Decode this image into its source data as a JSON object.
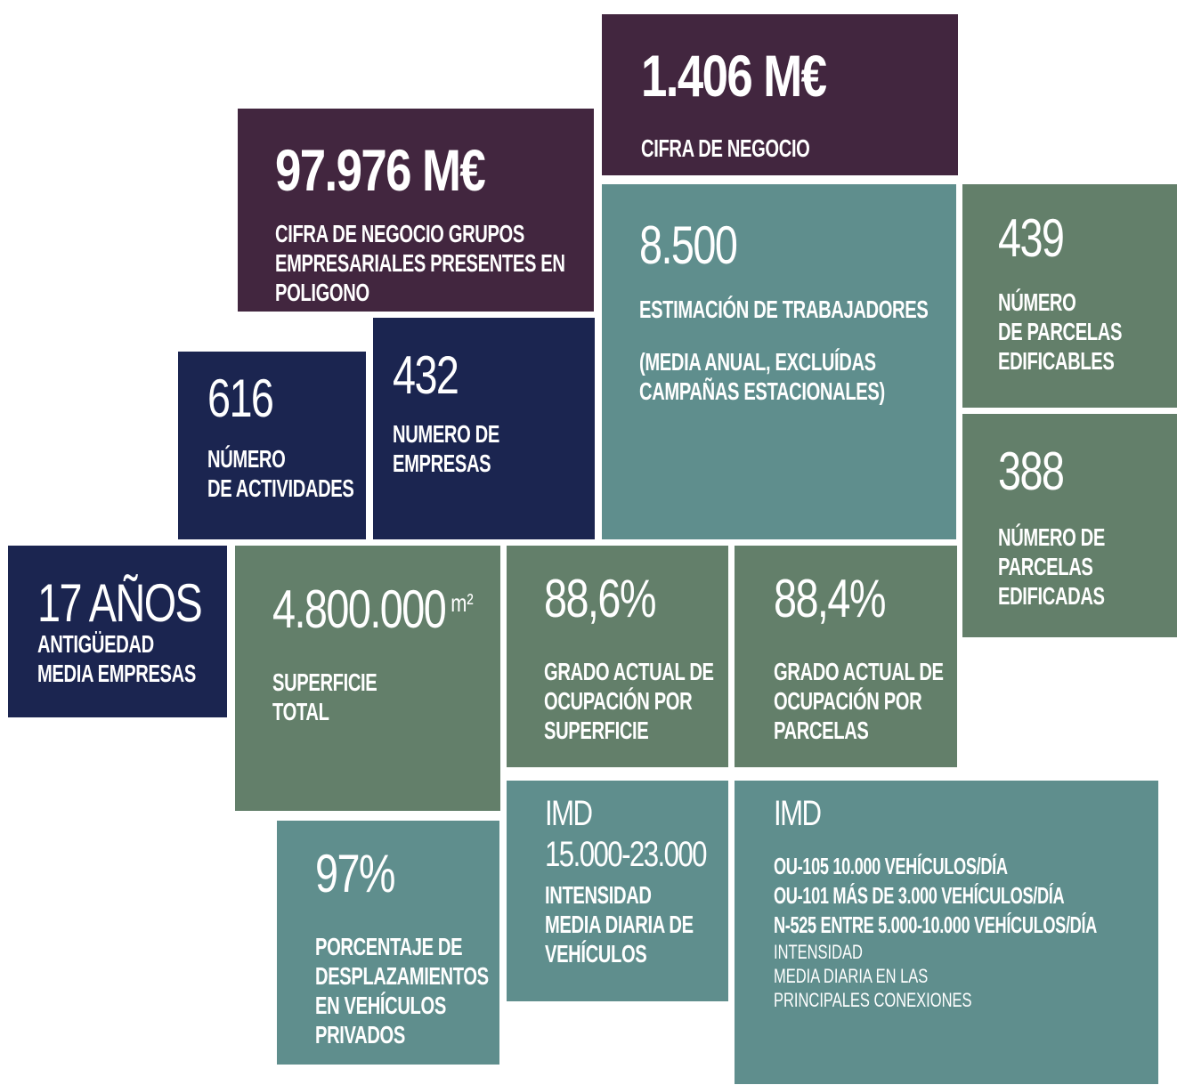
{
  "tiles": [
    {
      "value": [
        "1.406 M€"
      ],
      "label": [
        "CIFRA DE NEGOCIO"
      ]
    },
    {
      "value": [
        "97.976 M€"
      ],
      "label": [
        "CIFRA DE NEGOCIO GRUPOS",
        "EMPRESARIALES PRESENTES EN",
        "POLIGONO"
      ]
    },
    {
      "value": [
        "8.500"
      ],
      "label": [
        "ESTIMACIÓN DE TRABAJADORES"
      ],
      "note": [
        "(MEDIA ANUAL, EXCLUÍDAS",
        "CAMPAÑAS ESTACIONALES)"
      ]
    },
    {
      "value": [
        "439"
      ],
      "label": [
        "NÚMERO",
        "DE PARCELAS",
        "EDIFICABLES"
      ]
    },
    {
      "value": [
        "388"
      ],
      "label": [
        "NÚMERO DE",
        "PARCELAS",
        "EDIFICADAS"
      ]
    },
    {
      "value": [
        "616"
      ],
      "label": [
        "NÚMERO",
        "DE ACTIVIDADES"
      ]
    },
    {
      "value": [
        "432"
      ],
      "label": [
        "NUMERO DE",
        "EMPRESAS"
      ]
    },
    {
      "value": [
        "17 AÑOS"
      ],
      "label": [
        "ANTIGÜEDAD",
        "MEDIA EMPRESAS"
      ]
    },
    {
      "value": [
        "4.800.000"
      ],
      "unit": "m²",
      "label": [
        "SUPERFICIE",
        "TOTAL"
      ]
    },
    {
      "value": [
        "88,6%"
      ],
      "label": [
        "GRADO ACTUAL DE",
        "OCUPACIÓN POR",
        "SUPERFICIE"
      ]
    },
    {
      "value": [
        "88,4%"
      ],
      "label": [
        "GRADO ACTUAL DE",
        "OCUPACIÓN POR",
        "PARCELAS"
      ]
    },
    {
      "value": [
        "97%"
      ],
      "label": [
        "PORCENTAJE DE",
        "DESPLAZAMIENTOS",
        "EN VEHÍCULOS",
        "PRIVADOS"
      ]
    },
    {
      "value": [
        "IMD",
        "15.000-23.000"
      ],
      "label": [
        "INTENSIDAD",
        "MEDIA DIARIA DE",
        "VEHÍCULOS"
      ]
    },
    {
      "value": [
        "IMD"
      ],
      "label": [
        "OU-105 10.000 VEHÍCULOS/DÍA",
        "OU-101 MÁS DE 3.000 VEHÍCULOS/DÍA",
        "N-525 ENTRE 5.000-10.000 VEHÍCULOS/DÍA"
      ],
      "note": [
        "INTENSIDAD",
        "MEDIA DIARIA EN LAS",
        "PRINCIPALES CONEXIONES"
      ]
    }
  ]
}
